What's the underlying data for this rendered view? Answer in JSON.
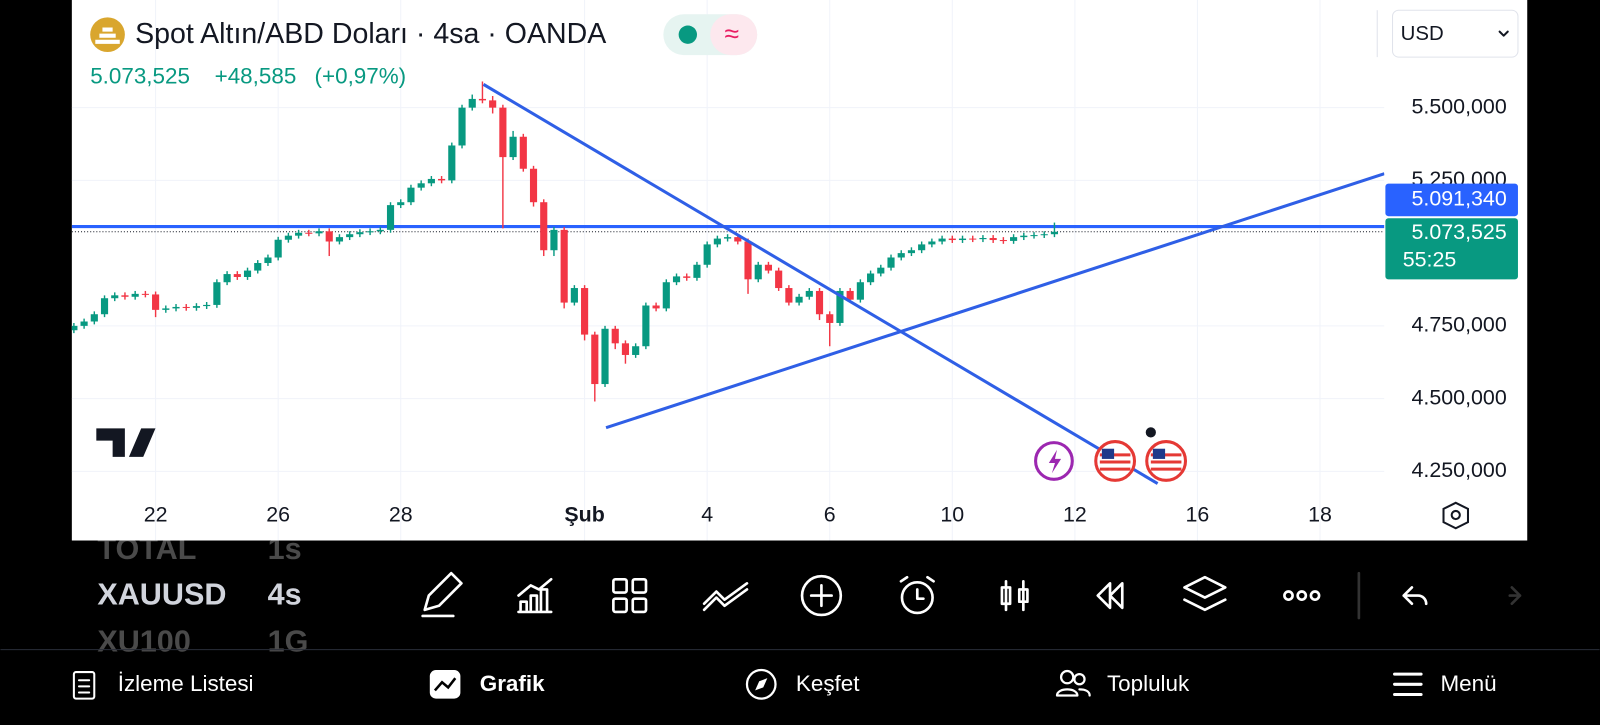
{
  "header": {
    "title": "Spot Altın/ABD Doları · 4sa · OANDA",
    "price": {
      "value": 5073.525,
      "label": "5.073,525"
    },
    "change": {
      "value": 48.585,
      "label": "+48,585"
    },
    "change_percent": {
      "value": 0.97,
      "label": "(+0,97%)"
    },
    "currency": "USD"
  },
  "chart_data": {
    "type": "candlestick",
    "open": [
      4735,
      4750,
      4765,
      4790,
      4845,
      4855,
      4850,
      4860,
      4858,
      4805,
      4810,
      4815,
      4812,
      4818,
      4822,
      4900,
      4928,
      4918,
      4940,
      4966,
      4985,
      5046,
      5060,
      5070,
      5068,
      5075,
      5040,
      5055,
      5065,
      5072,
      5075,
      5080,
      5165,
      5175,
      5225,
      5240,
      5255,
      5250,
      5370,
      5500,
      5530,
      5525,
      5500,
      5330,
      5400,
      5290,
      5175,
      5010,
      5080,
      4830,
      4880,
      4720,
      4550,
      4740,
      4690,
      4650,
      4680,
      4820,
      4810,
      4900,
      4920,
      4915,
      4960,
      5030,
      5050,
      5055,
      5040,
      4910,
      4960,
      4940,
      4880,
      4830,
      4850,
      4870,
      4790,
      4760,
      4870,
      4840,
      4900,
      4930,
      4950,
      4985,
      5000,
      5010,
      5030,
      5040,
      5050,
      5045,
      5050,
      5048,
      5052,
      5045,
      5042,
      5055,
      5060,
      5062,
      5065
    ],
    "high": [
      4760,
      4775,
      4800,
      4855,
      4865,
      4865,
      4870,
      4870,
      4868,
      4820,
      4825,
      4825,
      4828,
      4832,
      4910,
      4938,
      4938,
      4950,
      4976,
      4995,
      5056,
      5070,
      5080,
      5080,
      5085,
      5085,
      5065,
      5075,
      5082,
      5085,
      5090,
      5175,
      5185,
      5235,
      5250,
      5265,
      5265,
      5380,
      5510,
      5545,
      5590,
      5540,
      5510,
      5420,
      5410,
      5300,
      5185,
      5090,
      5090,
      4890,
      4890,
      4730,
      4750,
      4750,
      4700,
      4690,
      4830,
      4830,
      4910,
      4930,
      4930,
      4970,
      5040,
      5060,
      5065,
      5065,
      5050,
      4970,
      4970,
      4950,
      4890,
      4860,
      4880,
      4880,
      4800,
      4880,
      4880,
      4910,
      4940,
      4960,
      4995,
      5010,
      5020,
      5040,
      5050,
      5060,
      5060,
      5060,
      5060,
      5062,
      5062,
      5055,
      5065,
      5070,
      5072,
      5075,
      5105
    ],
    "low": [
      4725,
      4740,
      4755,
      4780,
      4835,
      4840,
      4840,
      4848,
      4780,
      4795,
      4800,
      4802,
      4802,
      4808,
      4812,
      4890,
      4908,
      4908,
      4930,
      4956,
      4975,
      5036,
      5050,
      5058,
      5058,
      4990,
      5030,
      5045,
      5055,
      5062,
      5065,
      5070,
      5155,
      5165,
      5215,
      5230,
      5240,
      5240,
      5360,
      5490,
      5515,
      5480,
      5085,
      5320,
      5280,
      5160,
      4990,
      4990,
      4810,
      4820,
      4700,
      4490,
      4540,
      4670,
      4620,
      4640,
      4670,
      4800,
      4800,
      4890,
      4905,
      4905,
      4950,
      5020,
      5040,
      5030,
      4860,
      4900,
      4930,
      4870,
      4820,
      4820,
      4840,
      4770,
      4680,
      4750,
      4830,
      4830,
      4890,
      4920,
      4940,
      4975,
      4990,
      5000,
      5020,
      5030,
      5035,
      5035,
      5038,
      5038,
      5035,
      5032,
      5032,
      5045,
      5050,
      5052,
      5055
    ],
    "close": [
      4750,
      4765,
      4790,
      4845,
      4855,
      4850,
      4860,
      4858,
      4805,
      4810,
      4815,
      4812,
      4818,
      4822,
      4900,
      4928,
      4918,
      4940,
      4966,
      4985,
      5046,
      5060,
      5070,
      5068,
      5075,
      5040,
      5055,
      5065,
      5072,
      5075,
      5080,
      5165,
      5175,
      5225,
      5240,
      5255,
      5250,
      5370,
      5500,
      5530,
      5525,
      5500,
      5330,
      5400,
      5290,
      5175,
      5010,
      5080,
      4830,
      4880,
      4720,
      4550,
      4740,
      4690,
      4650,
      4680,
      4820,
      4810,
      4900,
      4920,
      4915,
      4960,
      5030,
      5050,
      5055,
      5040,
      4910,
      4960,
      4940,
      4880,
      4830,
      4850,
      4870,
      4790,
      4760,
      4870,
      4840,
      4900,
      4930,
      4950,
      4985,
      5000,
      5010,
      5030,
      5040,
      5050,
      5045,
      5050,
      5048,
      5052,
      5045,
      5042,
      5055,
      5060,
      5062,
      5065,
      5073.525
    ],
    "up_color": "#089981",
    "down_color": "#f23645",
    "xlim": [
      -0.2,
      128.3
    ],
    "xticks": [
      {
        "value": 8,
        "label": "22"
      },
      {
        "value": 20,
        "label": "26"
      },
      {
        "value": 32,
        "label": "28"
      },
      {
        "value": 50,
        "label": "Şub"
      },
      {
        "value": 62,
        "label": "4"
      },
      {
        "value": 74,
        "label": "6"
      },
      {
        "value": 86,
        "label": "10"
      },
      {
        "value": 98,
        "label": "12"
      },
      {
        "value": 110,
        "label": "16"
      },
      {
        "value": 122,
        "label": "18"
      }
    ],
    "ylim": [
      4170,
      5870
    ],
    "yticks": [
      {
        "value": 4250,
        "label": "4.250,000"
      },
      {
        "value": 4500,
        "label": "4.500,000"
      },
      {
        "value": 4750,
        "label": "4.750,000"
      },
      {
        "value": 5250,
        "label": "5.250,000"
      },
      {
        "value": 5500,
        "label": "5.500,000"
      }
    ],
    "grid": true,
    "trend_lines": [
      {
        "color": "#2f5fe6",
        "x": [
          40.1,
          106.1
        ],
        "y": [
          5580,
          4208
        ]
      },
      {
        "color": "#2f5fe6",
        "x": [
          52.1,
          128.3
        ],
        "y": [
          4400,
          5273
        ]
      }
    ],
    "horizontal_line": {
      "value": 5091.34,
      "label": "5.091,340",
      "color": "#2962ff"
    },
    "last_price": {
      "value": 5073.525,
      "label": "5.073,525",
      "countdown": "55:25"
    }
  },
  "watchlist": [
    [
      "TOTAL",
      "1s"
    ],
    [
      "XAUUSD",
      "4s"
    ],
    [
      "XU100",
      "1G"
    ]
  ],
  "nav": [
    "İzleme Listesi",
    "Grafik",
    "Keşfet",
    "Topluluk",
    "Menü"
  ]
}
